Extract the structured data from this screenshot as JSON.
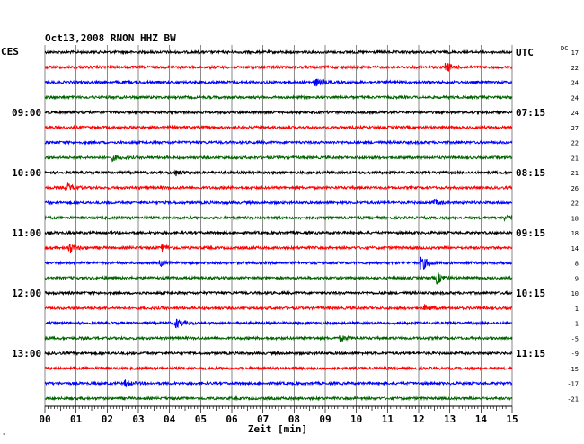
{
  "chart_data": {
    "type": "line",
    "title": "Oct13,2008   RNON HHZ BW",
    "left_timezone_label": "CES",
    "right_timezone_label": "UTC",
    "dc_label": "DC",
    "xlabel": "Zeit [min]",
    "x_ticks": [
      "00",
      "01",
      "02",
      "03",
      "04",
      "05",
      "06",
      "07",
      "08",
      "09",
      "10",
      "11",
      "12",
      "13",
      "14",
      "15"
    ],
    "xlim": [
      0,
      15
    ],
    "left_hour_labels": [
      {
        "trace": 4,
        "label": "09:00"
      },
      {
        "trace": 8,
        "label": "10:00"
      },
      {
        "trace": 12,
        "label": "11:00"
      },
      {
        "trace": 16,
        "label": "12:00"
      },
      {
        "trace": 20,
        "label": "13:00"
      }
    ],
    "right_hour_labels": [
      {
        "trace": 0,
        "label": "UTC"
      },
      {
        "trace": 4,
        "label": "07:15"
      },
      {
        "trace": 8,
        "label": "08:15"
      },
      {
        "trace": 12,
        "label": "09:15"
      },
      {
        "trace": 16,
        "label": "10:15"
      },
      {
        "trace": 20,
        "label": "11:15"
      }
    ],
    "dc_values": [
      "17",
      "22",
      "24",
      "24",
      "24",
      "27",
      "22",
      "21",
      "21",
      "26",
      "22",
      "18",
      "18",
      "14",
      "8",
      "9",
      "10",
      "1",
      "-1",
      "-5",
      "-9",
      "-15",
      "-17",
      "-21"
    ],
    "trace_colors": [
      "#000000",
      "#ff0000",
      "#0000ff",
      "#006400"
    ],
    "traces": [
      {
        "events": []
      },
      {
        "events": [
          {
            "minute": 12.9,
            "amp": 5
          }
        ]
      },
      {
        "events": [
          {
            "minute": 8.7,
            "amp": 4
          }
        ]
      },
      {
        "events": []
      },
      {
        "events": []
      },
      {
        "events": []
      },
      {
        "events": []
      },
      {
        "events": [
          {
            "minute": 2.2,
            "amp": 3
          }
        ]
      },
      {
        "events": [
          {
            "minute": 4.2,
            "amp": 3
          }
        ]
      },
      {
        "events": [
          {
            "minute": 0.7,
            "amp": 5
          }
        ]
      },
      {
        "events": [
          {
            "minute": 12.5,
            "amp": 3
          }
        ]
      },
      {
        "events": [
          {
            "minute": 14.8,
            "amp": 3
          }
        ]
      },
      {
        "events": []
      },
      {
        "events": [
          {
            "minute": 0.8,
            "amp": 5
          },
          {
            "minute": 3.8,
            "amp": 3
          }
        ]
      },
      {
        "events": [
          {
            "minute": 12.1,
            "amp": 8
          },
          {
            "minute": 3.7,
            "amp": 3
          }
        ]
      },
      {
        "events": [
          {
            "minute": 12.6,
            "amp": 6
          }
        ]
      },
      {
        "events": []
      },
      {
        "events": [
          {
            "minute": 12.2,
            "amp": 3
          }
        ]
      },
      {
        "events": [
          {
            "minute": 4.2,
            "amp": 5
          }
        ]
      },
      {
        "events": [
          {
            "minute": 9.5,
            "amp": 3
          }
        ]
      },
      {
        "events": []
      },
      {
        "events": []
      },
      {
        "events": [
          {
            "minute": 2.6,
            "amp": 3
          }
        ]
      },
      {
        "events": []
      }
    ]
  }
}
